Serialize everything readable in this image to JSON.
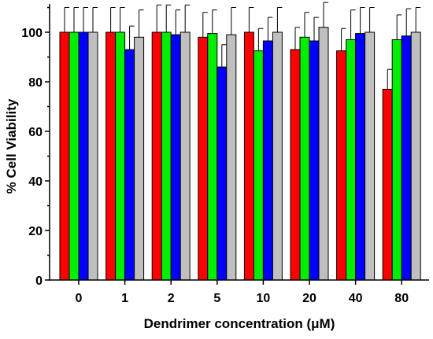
{
  "chart_data": {
    "type": "bar",
    "title": "",
    "xlabel": "Dendrimer concentration (μM)",
    "ylabel": "% Cell Viability",
    "categories": [
      "0",
      "1",
      "2",
      "5",
      "10",
      "20",
      "40",
      "80"
    ],
    "ylim": [
      0,
      110
    ],
    "yticks": [
      0,
      20,
      40,
      60,
      80,
      100
    ],
    "grid": false,
    "legend": "none",
    "error_bars": "upper only",
    "series": [
      {
        "color": "#ff0000",
        "values": [
          100,
          100,
          100,
          98,
          100,
          93,
          92.5,
          77
        ],
        "errors": [
          10,
          10,
          11,
          10,
          10,
          9,
          9,
          8
        ]
      },
      {
        "color": "#00ee00",
        "values": [
          100,
          100,
          100,
          99.5,
          92.5,
          98,
          97,
          97
        ],
        "errors": [
          10,
          10,
          11,
          9.5,
          9,
          10,
          12,
          10
        ]
      },
      {
        "color": "#0000ff",
        "values": [
          100,
          93,
          99,
          86,
          96.5,
          96.5,
          99.5,
          98.5
        ],
        "errors": [
          10,
          9.5,
          10,
          9,
          9.5,
          9.5,
          10.5,
          11
        ]
      },
      {
        "color": "#bfbfbf",
        "values": [
          100,
          98,
          100,
          99,
          100,
          102,
          100,
          100
        ],
        "errors": [
          10,
          11,
          11,
          11,
          10,
          10,
          10,
          10
        ]
      }
    ]
  }
}
